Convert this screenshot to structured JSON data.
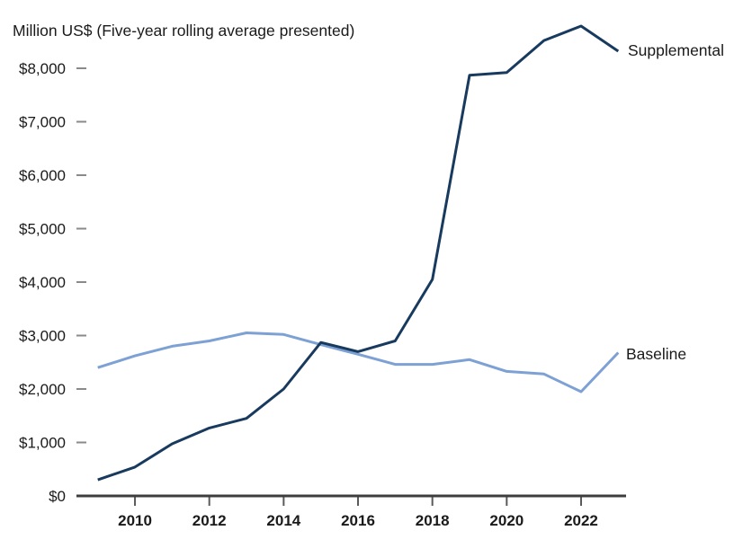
{
  "chart_data": {
    "type": "line",
    "title": "Million US$ (Five-year rolling average presented)",
    "xlabel": "",
    "ylabel": "Million US$",
    "x": [
      2009,
      2010,
      2011,
      2012,
      2013,
      2014,
      2015,
      2016,
      2017,
      2018,
      2019,
      2020,
      2021,
      2022,
      2023
    ],
    "series": [
      {
        "name": "Baseline",
        "color": "#7da1d4",
        "values": [
          2400,
          2620,
          2800,
          2900,
          3050,
          3020,
          2830,
          2650,
          2460,
          2460,
          2550,
          2330,
          2280,
          1950,
          2680
        ]
      },
      {
        "name": "Supplemental",
        "color": "#173a5e",
        "values": [
          300,
          540,
          975,
          1270,
          1450,
          2000,
          2870,
          2700,
          2900,
          4050,
          7870,
          7920,
          8520,
          8790,
          8320
        ]
      }
    ],
    "ylim": [
      0,
      8000
    ],
    "xlim": [
      2009,
      2023
    ],
    "grid": false,
    "legend_position": "line-end-labels",
    "y_axis": {
      "tick_values": [
        0,
        1000,
        2000,
        3000,
        4000,
        5000,
        6000,
        7000,
        8000
      ],
      "tick_labels": [
        "$0",
        "$1,000",
        "$2,000",
        "$3,000",
        "$4,000",
        "$5,000",
        "$6,000",
        "$7,000",
        "$8,000"
      ]
    },
    "x_axis": {
      "tick_values": [
        2010,
        2012,
        2014,
        2016,
        2018,
        2020,
        2022
      ],
      "tick_labels": [
        "2010",
        "2012",
        "2014",
        "2016",
        "2018",
        "2020",
        "2022"
      ]
    },
    "colors": {
      "axis_line": "#3d3d3d",
      "y_tick_mark": "#8a8a8a",
      "x_tick_mark": "#5a5a5a",
      "text": "#1a1a1a"
    }
  }
}
